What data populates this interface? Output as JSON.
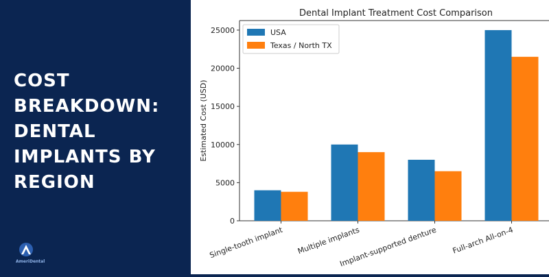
{
  "headline": {
    "lines": [
      "COST",
      "BREAKDOWN:",
      "DENTAL",
      "IMPLANTS BY",
      "REGION"
    ]
  },
  "logo": {
    "brand": "AmeriDental"
  },
  "colors": {
    "background": "#0b2551",
    "usa": "#1f77b4",
    "texas": "#ff7f0e"
  },
  "chart_data": {
    "type": "bar",
    "title": "Dental Implant Treatment Cost Comparison",
    "xlabel": "",
    "ylabel": "Estimated Cost (USD)",
    "ylim": [
      0,
      26250
    ],
    "yticks": [
      0,
      5000,
      10000,
      15000,
      20000,
      25000
    ],
    "categories": [
      "Single-tooth implant",
      "Multiple implants",
      "Implant-supported denture",
      "Full-arch All-on-4"
    ],
    "series": [
      {
        "name": "USA",
        "color": "#1f77b4",
        "values": [
          4000,
          10000,
          8000,
          25000
        ]
      },
      {
        "name": "Texas / North TX",
        "color": "#ff7f0e",
        "values": [
          3800,
          9000,
          6500,
          21500
        ]
      }
    ],
    "legend": "top-left",
    "grid": false
  }
}
